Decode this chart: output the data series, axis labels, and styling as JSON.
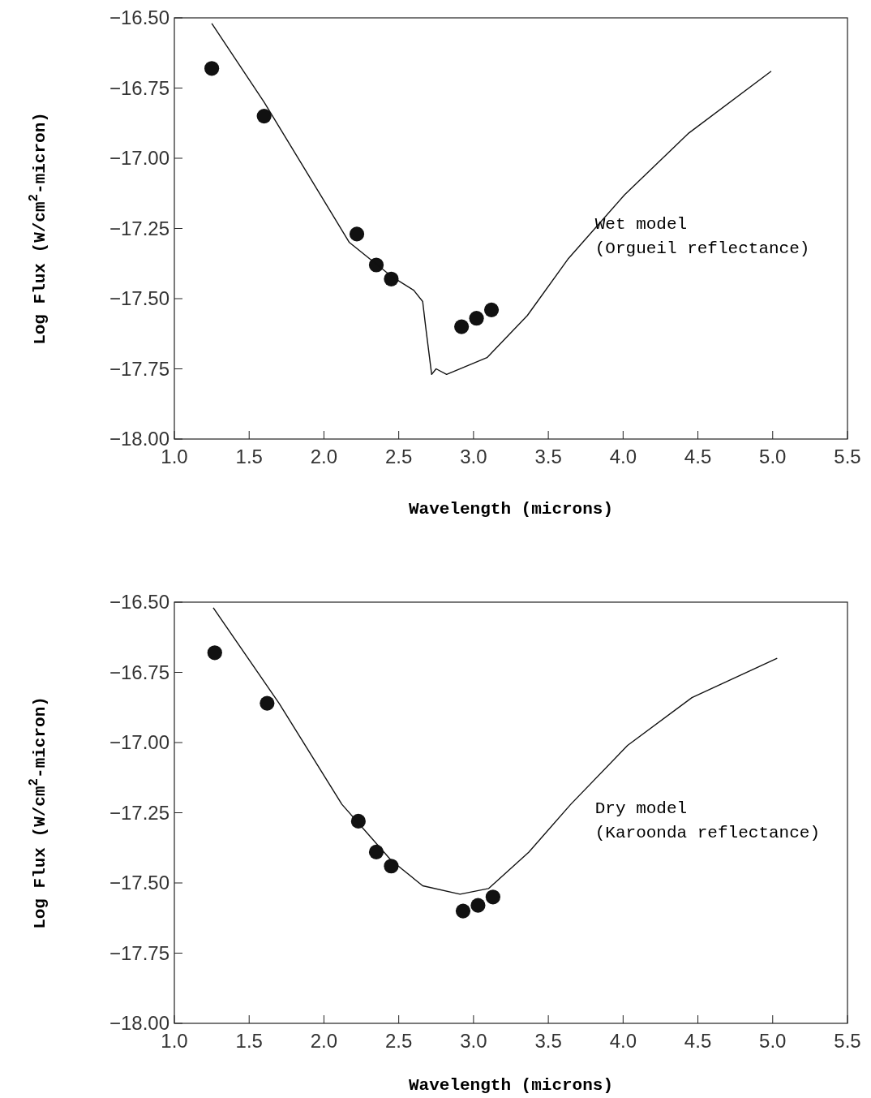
{
  "chart_data": [
    {
      "type": "line",
      "xlabel": "Wavelength (microns)",
      "ylabel": "Log Flux (W/cm$^{2}$-micron)",
      "xlim": [
        1,
        5.5
      ],
      "ylim": [
        -18,
        -16.5
      ],
      "xticks": [
        {
          "value": 1,
          "label": "1.0"
        },
        {
          "value": 1.5,
          "label": "1.5"
        },
        {
          "value": 2,
          "label": "2.0"
        },
        {
          "value": 2.5,
          "label": "2.5"
        },
        {
          "value": 3,
          "label": "3.0"
        },
        {
          "value": 3.5,
          "label": "3.5"
        },
        {
          "value": 4,
          "label": "4.0"
        },
        {
          "value": 4.5,
          "label": "4.5"
        },
        {
          "value": 5,
          "label": "5.0"
        },
        {
          "value": 5.5,
          "label": "5.5"
        }
      ],
      "yticks": [
        {
          "value": -18,
          "label": "−18.00"
        },
        {
          "value": -17.75,
          "label": "−17.75"
        },
        {
          "value": -17.5,
          "label": "−17.50"
        },
        {
          "value": -17.25,
          "label": "−17.25"
        },
        {
          "value": -17,
          "label": "−17.00"
        },
        {
          "value": -16.75,
          "label": "−16.75"
        },
        {
          "value": -16.5,
          "label": "−16.50"
        }
      ],
      "series": [
        {
          "type": "scatter",
          "marker": "circle",
          "color": "#111111",
          "x": [
            1.25,
            1.6,
            2.22,
            2.35,
            2.45,
            2.92,
            3.02,
            3.12
          ],
          "values": [
            -16.68,
            -16.85,
            -17.27,
            -17.38,
            -17.43,
            -17.6,
            -17.57,
            -17.54
          ]
        },
        {
          "color": "#111111",
          "x": [
            1.25,
            1.6,
            2.17,
            2.45,
            2.6,
            2.66,
            2.68,
            2.72,
            2.75,
            2.82,
            3.09,
            3.36,
            3.63,
            4.01,
            4.44,
            4.99
          ],
          "values": [
            -16.52,
            -16.8,
            -17.3,
            -17.42,
            -17.47,
            -17.51,
            -17.6,
            -17.77,
            -17.75,
            -17.77,
            -17.71,
            -17.56,
            -17.36,
            -17.13,
            -16.91,
            -16.69
          ]
        }
      ],
      "annotations": [
        "Wet model\n(Orgueil reflectance)"
      ]
    },
    {
      "type": "line",
      "xlabel": "Wavelength (microns)",
      "ylabel": "Log Flux (W/cm$^{2}$-micron)",
      "xlim": [
        1,
        5.5
      ],
      "ylim": [
        -18,
        -16.5
      ],
      "xticks": [
        {
          "value": 1,
          "label": "1.0"
        },
        {
          "value": 1.5,
          "label": "1.5"
        },
        {
          "value": 2,
          "label": "2.0"
        },
        {
          "value": 2.5,
          "label": "2.5"
        },
        {
          "value": 3,
          "label": "3.0"
        },
        {
          "value": 3.5,
          "label": "3.5"
        },
        {
          "value": 4,
          "label": "4.0"
        },
        {
          "value": 4.5,
          "label": "4.5"
        },
        {
          "value": 5,
          "label": "5.0"
        },
        {
          "value": 5.5,
          "label": "5.5"
        }
      ],
      "yticks": [
        {
          "value": -18,
          "label": "−18.00"
        },
        {
          "value": -17.75,
          "label": "−17.75"
        },
        {
          "value": -17.5,
          "label": "−17.50"
        },
        {
          "value": -17.25,
          "label": "−17.25"
        },
        {
          "value": -17,
          "label": "−17.00"
        },
        {
          "value": -16.75,
          "label": "−16.75"
        },
        {
          "value": -16.5,
          "label": "−16.50"
        }
      ],
      "series": [
        {
          "type": "scatter",
          "marker": "circle",
          "color": "#111111",
          "x": [
            1.27,
            1.62,
            2.23,
            2.35,
            2.45,
            2.93,
            3.03,
            3.13
          ],
          "values": [
            -16.68,
            -16.86,
            -17.28,
            -17.39,
            -17.44,
            -17.6,
            -17.58,
            -17.55
          ]
        },
        {
          "color": "#111111",
          "x": [
            1.26,
            1.7,
            2.12,
            2.45,
            2.66,
            2.91,
            3.1,
            3.37,
            3.65,
            4.03,
            4.46,
            5.03
          ],
          "values": [
            -16.52,
            -16.86,
            -17.22,
            -17.42,
            -17.51,
            -17.54,
            -17.52,
            -17.39,
            -17.22,
            -17.01,
            -16.84,
            -16.7
          ]
        }
      ],
      "annotations": [
        "Dry model\n(Karoonda reflectance)"
      ]
    }
  ]
}
